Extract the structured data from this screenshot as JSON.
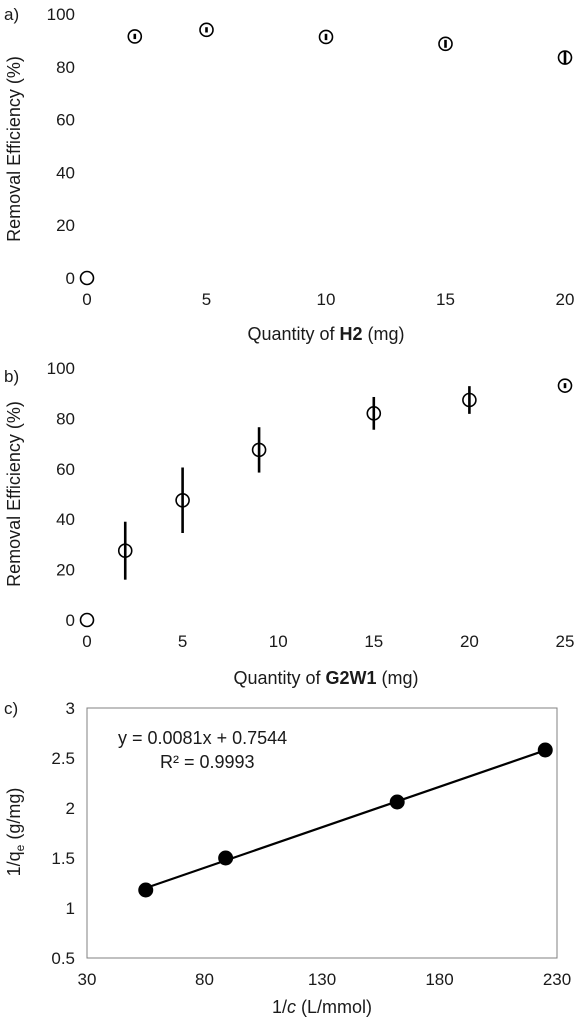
{
  "chart_data": [
    {
      "panel_label": "a)",
      "type": "scatter",
      "xlabel_prefix": "Quantity of ",
      "xlabel_bold": "H2",
      "xlabel_suffix": " (mg)",
      "ylabel": "Removal Efficiency (%)",
      "xlim": [
        0,
        20
      ],
      "ylim": [
        0,
        100
      ],
      "xticks": [
        0,
        5,
        10,
        15,
        20
      ],
      "yticks": [
        0,
        20,
        40,
        60,
        80,
        100
      ],
      "grid": false,
      "series": [
        {
          "x": [
            0,
            2,
            5,
            10,
            15,
            20
          ],
          "y": [
            0,
            91.5,
            94,
            91.3,
            88.7,
            83.5
          ],
          "err": [
            0,
            1,
            1,
            1.2,
            1.5,
            2.5
          ],
          "marker": "open-circle"
        }
      ]
    },
    {
      "panel_label": "b)",
      "type": "scatter",
      "xlabel_prefix": "Quantity of ",
      "xlabel_bold": "G2W1",
      "xlabel_suffix": " (mg)",
      "ylabel": "Removal Efficiency (%)",
      "xlim": [
        0,
        25
      ],
      "ylim": [
        0,
        100
      ],
      "xticks": [
        0,
        5,
        10,
        15,
        20,
        25
      ],
      "yticks": [
        0,
        20,
        40,
        60,
        80,
        100
      ],
      "grid": false,
      "series": [
        {
          "x": [
            0,
            2,
            5,
            9,
            15,
            20,
            25
          ],
          "y": [
            0,
            27.5,
            47.5,
            67.5,
            82,
            87.3,
            93
          ],
          "err": [
            0,
            11.5,
            13,
            9,
            6.5,
            5.5,
            1
          ],
          "marker": "open-circle"
        }
      ]
    },
    {
      "panel_label": "c)",
      "type": "scatter",
      "xlabel_prefix": "1/",
      "xlabel_italic": "c",
      "xlabel_suffix": " (L/mmol)",
      "ylabel_prefix": "1/q",
      "ylabel_sub": "e",
      "ylabel_suffix": " (g/mg)",
      "xlim": [
        30,
        230
      ],
      "ylim": [
        0.5,
        3
      ],
      "xticks": [
        30,
        80,
        130,
        180,
        230
      ],
      "yticks": [
        0.5,
        1,
        1.5,
        2,
        2.5,
        3
      ],
      "grid": false,
      "series": [
        {
          "x": [
            55,
            89,
            162,
            225
          ],
          "y": [
            1.18,
            1.5,
            2.06,
            2.58
          ],
          "marker": "filled-circle"
        }
      ],
      "trendline": {
        "slope": 0.0081,
        "intercept": 0.7544,
        "x_range": [
          55,
          225
        ]
      },
      "equation": "y = 0.0081x + 0.7544",
      "r_squared": "R² = 0.9993"
    }
  ]
}
